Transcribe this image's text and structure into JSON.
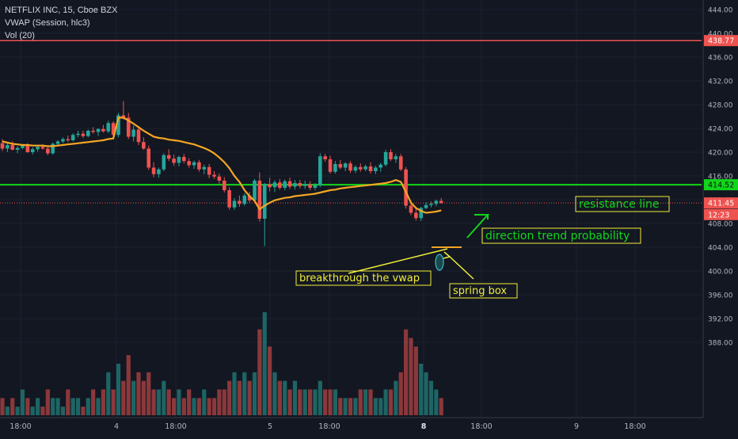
{
  "header": {
    "symbol_line": "NETFLIX INC, 15, Cboe BZX",
    "vwap_label": "VWAP (Session, hlc3)",
    "volume_label": "Vol (20)"
  },
  "colors": {
    "background": "#131722",
    "up": "#26a69a",
    "down": "#ef5350",
    "vwap": "#f5a623",
    "resistance": "#11d61a",
    "red_level": "#ef5350",
    "annotation": "#f0ee3a",
    "annotation_text_green": "#11d61a",
    "annotation_text_yellow": "#f0ee3a"
  },
  "chart_data": {
    "type": "candlestick",
    "ylim": [
      385,
      445
    ],
    "y_ticks": [
      "444.00",
      "440.00",
      "436.00",
      "432.00",
      "428.00",
      "424.00",
      "420.00",
      "416.00",
      "412.00",
      "408.00",
      "404.00",
      "400.00",
      "396.00",
      "392.00",
      "388.00"
    ],
    "x_ticks": [
      "18:00",
      "4",
      "18:00",
      "5",
      "18:00",
      "8",
      "18:00",
      "9",
      "18:00"
    ],
    "price_labels": [
      {
        "name": "upper-level",
        "value": 438.77,
        "text": "438.77",
        "color": "#ef5350"
      },
      {
        "name": "resistance",
        "value": 414.52,
        "text": "414.52",
        "color": "#11d61a"
      },
      {
        "name": "last-price",
        "value": 411.45,
        "text": "411.45",
        "color": "#ef5350"
      },
      {
        "name": "countdown",
        "value": 409.5,
        "text": "12:23",
        "color": "#ef5350"
      }
    ],
    "horizontal_lines": [
      {
        "name": "upper-red-line",
        "value": 438.77,
        "color": "#ef5350"
      },
      {
        "name": "resistance-line",
        "value": 414.52,
        "color": "#11d61a"
      }
    ],
    "candles": [
      [
        421.5,
        422.2,
        420.2,
        420.6
      ],
      [
        420.6,
        421.5,
        420.0,
        421.2
      ],
      [
        421.2,
        421.8,
        420.3,
        420.4
      ],
      [
        420.4,
        421.0,
        419.8,
        420.7
      ],
      [
        420.7,
        421.4,
        420.5,
        421.1
      ],
      [
        421.1,
        421.5,
        419.9,
        420.0
      ],
      [
        420.0,
        420.8,
        419.6,
        420.5
      ],
      [
        420.5,
        421.2,
        420.1,
        420.9
      ],
      [
        420.9,
        421.3,
        420.4,
        420.6
      ],
      [
        420.6,
        421.0,
        419.5,
        419.8
      ],
      [
        419.8,
        421.6,
        419.6,
        421.4
      ],
      [
        421.4,
        422.0,
        421.0,
        421.8
      ],
      [
        421.8,
        422.5,
        421.5,
        422.2
      ],
      [
        422.2,
        422.8,
        421.7,
        422.0
      ],
      [
        422.0,
        423.2,
        421.8,
        422.9
      ],
      [
        422.9,
        423.6,
        422.5,
        423.1
      ],
      [
        423.1,
        423.6,
        422.4,
        422.7
      ],
      [
        422.7,
        423.8,
        422.5,
        423.6
      ],
      [
        423.6,
        424.2,
        423.1,
        423.4
      ],
      [
        423.4,
        424.0,
        422.7,
        423.9
      ],
      [
        423.9,
        424.6,
        423.3,
        423.5
      ],
      [
        423.5,
        425.3,
        423.2,
        424.9
      ],
      [
        424.9,
        425.2,
        422.3,
        422.9
      ],
      [
        422.9,
        426.6,
        422.5,
        426.2
      ],
      [
        426.2,
        428.6,
        425.5,
        425.8
      ],
      [
        425.8,
        426.6,
        422.2,
        422.6
      ],
      [
        422.6,
        424.5,
        421.8,
        423.8
      ],
      [
        423.8,
        424.4,
        421.2,
        421.7
      ],
      [
        421.7,
        422.5,
        420.4,
        420.6
      ],
      [
        420.6,
        421.1,
        417.0,
        417.4
      ],
      [
        417.4,
        418.3,
        415.8,
        416.3
      ],
      [
        416.3,
        417.4,
        415.7,
        417.1
      ],
      [
        417.1,
        419.8,
        416.8,
        419.5
      ],
      [
        419.5,
        420.5,
        418.5,
        418.9
      ],
      [
        418.9,
        419.6,
        417.7,
        418.2
      ],
      [
        418.2,
        419.4,
        417.6,
        419.2
      ],
      [
        419.2,
        419.7,
        418.1,
        418.5
      ],
      [
        418.5,
        419.0,
        417.4,
        417.8
      ],
      [
        417.8,
        418.6,
        417.2,
        418.3
      ],
      [
        418.3,
        418.7,
        416.7,
        417.1
      ],
      [
        417.1,
        417.9,
        416.3,
        417.5
      ],
      [
        417.5,
        418.0,
        415.6,
        416.2
      ],
      [
        416.2,
        416.8,
        415.5,
        415.9
      ],
      [
        415.9,
        416.4,
        414.7,
        415.2
      ],
      [
        415.2,
        415.8,
        413.2,
        413.6
      ],
      [
        413.6,
        414.1,
        410.3,
        410.7
      ],
      [
        410.7,
        412.3,
        410.3,
        411.8
      ],
      [
        411.8,
        412.7,
        410.8,
        411.3
      ],
      [
        411.3,
        413.1,
        411.0,
        412.7
      ],
      [
        412.7,
        413.3,
        411.5,
        411.9
      ],
      [
        411.9,
        415.5,
        411.7,
        415.2
      ],
      [
        415.2,
        416.6,
        408.3,
        408.8
      ],
      [
        408.8,
        414.8,
        404.2,
        414.6
      ],
      [
        414.6,
        415.7,
        413.4,
        414.1
      ],
      [
        414.1,
        415.3,
        413.3,
        414.9
      ],
      [
        414.9,
        415.5,
        413.7,
        414.0
      ],
      [
        414.0,
        415.4,
        413.6,
        415.1
      ],
      [
        415.1,
        415.7,
        413.8,
        414.2
      ],
      [
        414.2,
        415.3,
        413.7,
        414.8
      ],
      [
        414.8,
        415.3,
        413.9,
        414.3
      ],
      [
        414.3,
        415.2,
        413.8,
        414.6
      ],
      [
        414.6,
        415.1,
        413.6,
        414.0
      ],
      [
        414.0,
        414.8,
        413.6,
        414.4
      ],
      [
        414.4,
        419.8,
        414.1,
        419.3
      ],
      [
        419.3,
        419.7,
        418.4,
        418.8
      ],
      [
        418.8,
        419.4,
        416.4,
        416.7
      ],
      [
        416.7,
        418.5,
        416.4,
        418.0
      ],
      [
        418.0,
        418.7,
        417.1,
        417.4
      ],
      [
        417.4,
        418.3,
        416.8,
        418.1
      ],
      [
        418.1,
        418.5,
        416.5,
        416.9
      ],
      [
        416.9,
        417.8,
        416.5,
        417.5
      ],
      [
        417.5,
        418.1,
        416.7,
        417.1
      ],
      [
        417.1,
        417.9,
        416.8,
        417.6
      ],
      [
        417.6,
        418.3,
        416.4,
        416.8
      ],
      [
        416.8,
        417.7,
        416.3,
        417.4
      ],
      [
        417.4,
        418.2,
        416.7,
        417.9
      ],
      [
        417.9,
        420.4,
        417.6,
        420.0
      ],
      [
        420.0,
        420.5,
        418.5,
        418.8
      ],
      [
        418.8,
        419.7,
        418.2,
        419.3
      ],
      [
        419.3,
        419.7,
        416.8,
        417.1
      ],
      [
        417.1,
        417.5,
        410.5,
        411.0
      ],
      [
        411.0,
        411.9,
        409.4,
        409.8
      ],
      [
        409.8,
        410.5,
        408.5,
        408.9
      ],
      [
        408.9,
        410.8,
        408.4,
        410.6
      ],
      [
        410.6,
        411.6,
        410.4,
        411.1
      ],
      [
        411.1,
        411.7,
        410.7,
        411.3
      ],
      [
        411.3,
        412.0,
        410.9,
        411.8
      ],
      [
        411.8,
        412.3,
        411.3,
        411.45
      ]
    ],
    "volume": [
      2,
      1,
      2,
      1,
      3,
      2,
      1,
      2,
      1,
      3,
      2,
      2,
      1,
      3,
      2,
      2,
      1,
      2,
      3,
      2,
      3,
      5,
      3,
      6,
      4,
      7,
      4,
      5,
      4,
      5,
      3,
      3,
      4,
      3,
      2,
      3,
      2,
      3,
      2,
      2,
      3,
      2,
      2,
      3,
      3,
      4,
      5,
      4,
      5,
      4,
      5,
      10,
      12,
      8,
      5,
      4,
      4,
      3,
      4,
      3,
      3,
      3,
      3,
      4,
      3,
      3,
      3,
      2,
      2,
      2,
      2,
      3,
      3,
      3,
      2,
      2,
      3,
      3,
      4,
      5,
      10,
      9,
      8,
      6,
      5,
      4,
      3,
      2
    ],
    "volume_max": 12,
    "vwap": [
      421.8,
      421.6,
      421.4,
      421.3,
      421.2,
      421.2,
      421.1,
      421.1,
      421.1,
      421.0,
      421.0,
      421.1,
      421.2,
      421.3,
      421.4,
      421.5,
      421.6,
      421.7,
      421.8,
      421.9,
      422.0,
      422.2,
      422.3,
      425.8,
      425.8,
      425.3,
      424.8,
      424.2,
      423.6,
      423.1,
      422.6,
      422.4,
      422.3,
      422.1,
      422.0,
      421.9,
      421.7,
      421.5,
      421.3,
      421.0,
      420.7,
      420.3,
      419.8,
      419.1,
      418.3,
      417.3,
      416.0,
      415.0,
      413.6,
      412.6,
      411.8,
      410.4,
      411.0,
      411.5,
      411.9,
      412.1,
      412.3,
      412.4,
      412.6,
      412.7,
      412.8,
      412.9,
      413.0,
      413.2,
      413.4,
      413.6,
      413.7,
      413.9,
      414.0,
      414.1,
      414.2,
      414.3,
      414.4,
      414.5,
      414.6,
      414.7,
      414.8,
      415.0,
      415.3,
      415.0,
      413.3,
      411.5,
      410.6,
      410.1,
      409.8,
      409.9,
      410.0,
      410.2
    ],
    "annotations": [
      {
        "name": "resistance-label",
        "text": "resistance line",
        "color": "#11d61a"
      },
      {
        "name": "trend-label",
        "text": "direction trend probability",
        "color": "#11d61a"
      },
      {
        "name": "vwap-break-label",
        "text": "breakthrough the vwap",
        "color": "#f0ee3a"
      },
      {
        "name": "spring-label",
        "text": "spring box",
        "color": "#f0ee3a"
      }
    ]
  }
}
